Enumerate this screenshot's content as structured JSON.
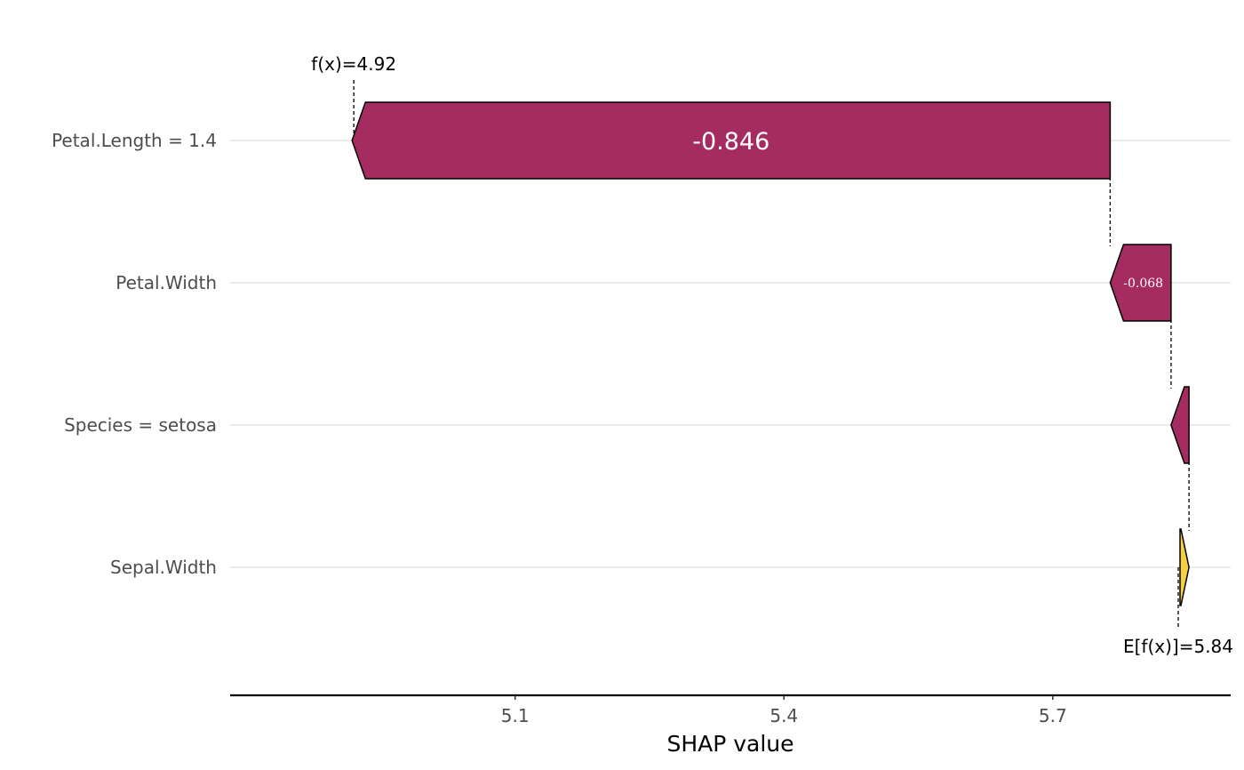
{
  "chart_data": {
    "type": "waterfall",
    "xlabel": "SHAP value",
    "xticks": [
      5.1,
      5.4,
      5.7
    ],
    "xtick_labels": [
      "5.1",
      "5.4",
      "5.7"
    ],
    "xlim": [
      4.782,
      5.8985
    ],
    "baseline": 5.84,
    "baseline_label": "E[f(x)]=5.84",
    "prediction": 4.92,
    "prediction_label": "f(x)=4.92",
    "features": [
      {
        "label": "Petal.Length = 1.4",
        "shap": -0.846,
        "value_label": "-0.846",
        "start": 5.764,
        "end": 4.918
      },
      {
        "label": "Petal.Width",
        "shap": -0.068,
        "value_label": "-0.068",
        "start": 5.832,
        "end": 5.764
      },
      {
        "label": "Species = setosa",
        "shap": -0.02,
        "value_label": "",
        "start": 5.852,
        "end": 5.832
      },
      {
        "label": "Sepal.Width",
        "shap": 0.01,
        "value_label": "",
        "start": 5.842,
        "end": 5.852
      }
    ],
    "colors": {
      "negative": "#A52C60",
      "positive": "#F7D13D",
      "gridline": "#ebebeb",
      "axis": "#000000"
    },
    "grid": "horizontal"
  }
}
